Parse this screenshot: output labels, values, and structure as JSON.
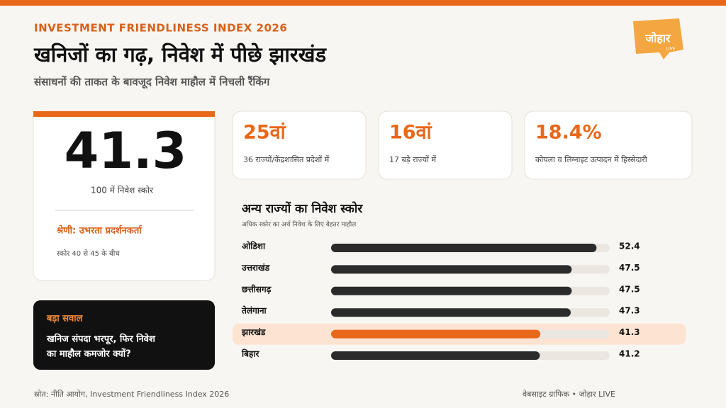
{
  "header": {
    "kicker": "INVESTMENT FRIENDLINESS INDEX 2026",
    "title": "खनिजों का गढ़, निवेश में पीछे झारखंड",
    "subtitle": "संसाधनों की ताकत के बावजूद निवेश माहौल में निचली रैंकिंग",
    "logo": "जोहार",
    "logo_tag": "LIVE"
  },
  "score_card": {
    "score": "41.3",
    "caption": "100 में निवेश स्कोर",
    "category": "श्रेणी: उभरता प्रदर्शनकर्ता",
    "range_note": "स्कोर 40 से 45 के बीच"
  },
  "stats": [
    {
      "value": "25वां",
      "label": "36 राज्यों/केंद्रशासित प्रदेशों में"
    },
    {
      "value": "16वां",
      "label": "17 बड़े राज्यों में"
    },
    {
      "value": "18.4%",
      "label": "कोयला व लिग्नाइट उत्पादन में हिस्सेदारी"
    }
  ],
  "question_box": {
    "heading": "बड़ा सवाल",
    "lines": [
      "खनिज संपदा भरपूर, फिर निवेश",
      "का माहौल कमजोर क्यों?"
    ]
  },
  "chart_data": {
    "type": "bar",
    "orientation": "horizontal",
    "title": "अन्य राज्यों का निवेश स्कोर",
    "subtitle": "अधिक स्कोर का अर्थ निवेश के लिए बेहतर माहौल",
    "categories": [
      "ओडिशा",
      "उत्तराखंड",
      "छत्तीसगढ़",
      "तेलंगाना",
      "झारखंड",
      "बिहार"
    ],
    "values": [
      52.4,
      47.5,
      47.5,
      47.3,
      41.3,
      41.2
    ],
    "colors": [
      "#2b2b2b",
      "#2b2b2b",
      "#2b2b2b",
      "#2b2b2b",
      "#e8681a",
      "#2b2b2b"
    ],
    "highlight_row_color": "#fde4d2",
    "track_color": "#ebe7e0",
    "xlim": [
      0,
      55
    ]
  },
  "footer": {
    "source": "स्रोत: नीति आयोग, Investment Friendliness Index 2026",
    "credit": "वेबसाइट ग्राफिक • जोहार LIVE"
  }
}
